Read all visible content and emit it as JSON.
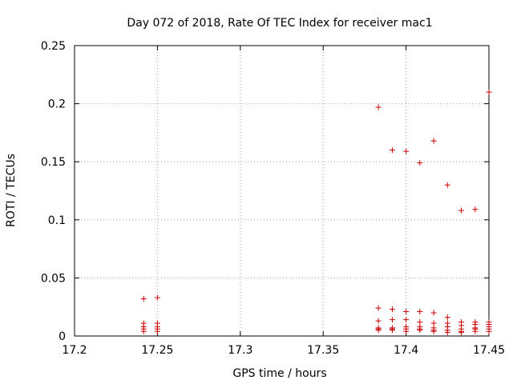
{
  "chart_data": {
    "type": "scatter",
    "title": "Day 072 of 2018, Rate Of TEC Index for receiver mac1",
    "xlabel": "GPS time / hours",
    "ylabel": "ROTI / TECUs",
    "xlim": [
      17.2,
      17.45
    ],
    "ylim": [
      0,
      0.25
    ],
    "xticks": [
      17.2,
      17.25,
      17.3,
      17.35,
      17.4,
      17.45
    ],
    "xtick_labels": [
      "17.2",
      "17.25",
      "17.3",
      "17.35",
      "17.4",
      "17.45"
    ],
    "yticks": [
      0,
      0.05,
      0.1,
      0.15,
      0.2,
      0.25
    ],
    "ytick_labels": [
      "0",
      "0.05",
      "0.1",
      "0.15",
      "0.2",
      "0.25"
    ],
    "grid": true,
    "marker": "+",
    "color": "#cc0000",
    "series": [
      {
        "name": "ROTI",
        "points": [
          [
            17.2417,
            0.032
          ],
          [
            17.2417,
            0.011
          ],
          [
            17.2417,
            0.008
          ],
          [
            17.2417,
            0.006
          ],
          [
            17.2417,
            0.004
          ],
          [
            17.25,
            0.033
          ],
          [
            17.25,
            0.011
          ],
          [
            17.25,
            0.008
          ],
          [
            17.25,
            0.006
          ],
          [
            17.25,
            0.004
          ],
          [
            17.3833,
            0.197
          ],
          [
            17.3833,
            0.024
          ],
          [
            17.3833,
            0.013
          ],
          [
            17.3833,
            0.007
          ],
          [
            17.3833,
            0.006
          ],
          [
            17.3833,
            0.005
          ],
          [
            17.3917,
            0.16
          ],
          [
            17.3917,
            0.023
          ],
          [
            17.3917,
            0.014
          ],
          [
            17.3917,
            0.007
          ],
          [
            17.3917,
            0.006
          ],
          [
            17.3917,
            0.005
          ],
          [
            17.4,
            0.159
          ],
          [
            17.4,
            0.021
          ],
          [
            17.4,
            0.014
          ],
          [
            17.4,
            0.008
          ],
          [
            17.4,
            0.006
          ],
          [
            17.4,
            0.004
          ],
          [
            17.4083,
            0.149
          ],
          [
            17.4083,
            0.021
          ],
          [
            17.4083,
            0.012
          ],
          [
            17.4083,
            0.008
          ],
          [
            17.4083,
            0.006
          ],
          [
            17.4083,
            0.005
          ],
          [
            17.4167,
            0.168
          ],
          [
            17.4167,
            0.02
          ],
          [
            17.4167,
            0.011
          ],
          [
            17.4167,
            0.007
          ],
          [
            17.4167,
            0.005
          ],
          [
            17.4167,
            0.004
          ],
          [
            17.425,
            0.13
          ],
          [
            17.425,
            0.016
          ],
          [
            17.425,
            0.011
          ],
          [
            17.425,
            0.008
          ],
          [
            17.425,
            0.005
          ],
          [
            17.425,
            0.003
          ],
          [
            17.4333,
            0.108
          ],
          [
            17.4333,
            0.012
          ],
          [
            17.4333,
            0.009
          ],
          [
            17.4333,
            0.006
          ],
          [
            17.4333,
            0.004
          ],
          [
            17.4333,
            0.003
          ],
          [
            17.4417,
            0.109
          ],
          [
            17.4417,
            0.012
          ],
          [
            17.4417,
            0.01
          ],
          [
            17.4417,
            0.007
          ],
          [
            17.4417,
            0.006
          ],
          [
            17.4417,
            0.004
          ],
          [
            17.45,
            0.21
          ],
          [
            17.45,
            0.012
          ],
          [
            17.45,
            0.01
          ],
          [
            17.45,
            0.008
          ],
          [
            17.45,
            0.006
          ],
          [
            17.45,
            0.004
          ]
        ]
      }
    ]
  }
}
